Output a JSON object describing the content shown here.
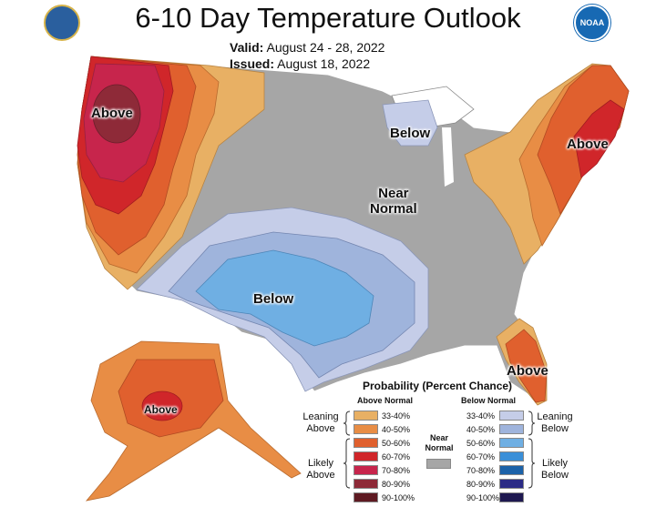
{
  "title": "6-10 Day Temperature Outlook",
  "valid": {
    "label": "Valid:",
    "value": "August 24 - 28, 2022"
  },
  "issued": {
    "label": "Issued:",
    "value": "August 18, 2022"
  },
  "noaa_logo_text": "NOAA",
  "regions": {
    "above_northwest": "Above",
    "below_greatlakes": "Below",
    "near_normal_line1": "Near",
    "near_normal_line2": "Normal",
    "above_northeast": "Above",
    "below_southcentral": "Below",
    "above_florida": "Above",
    "above_alaska": "Above"
  },
  "legend": {
    "title": "Probability (Percent Chance)",
    "above_head": "Above Normal",
    "below_head": "Below Normal",
    "near_label_1": "Near",
    "near_label_2": "Normal",
    "leaning_above_1": "Leaning",
    "leaning_above_2": "Above",
    "likely_above_1": "Likely",
    "likely_above_2": "Above",
    "leaning_below_1": "Leaning",
    "leaning_below_2": "Below",
    "likely_below_1": "Likely",
    "likely_below_2": "Below",
    "above": [
      {
        "label": "33-40%",
        "color": "#e8b064"
      },
      {
        "label": "40-50%",
        "color": "#e88d45"
      },
      {
        "label": "50-60%",
        "color": "#e0602e"
      },
      {
        "label": "60-70%",
        "color": "#d0262a"
      },
      {
        "label": "70-80%",
        "color": "#c7254c"
      },
      {
        "label": "80-90%",
        "color": "#8e2a38"
      },
      {
        "label": "90-100%",
        "color": "#5e1a22"
      }
    ],
    "below": [
      {
        "label": "33-40%",
        "color": "#c5cde8"
      },
      {
        "label": "40-50%",
        "color": "#9fb4dc"
      },
      {
        "label": "50-60%",
        "color": "#6fafe3"
      },
      {
        "label": "60-70%",
        "color": "#3a8fd8"
      },
      {
        "label": "70-80%",
        "color": "#1c62a8"
      },
      {
        "label": "80-90%",
        "color": "#2b2b86"
      },
      {
        "label": "90-100%",
        "color": "#1e1850"
      }
    ],
    "near_color": "#a6a6a6"
  }
}
